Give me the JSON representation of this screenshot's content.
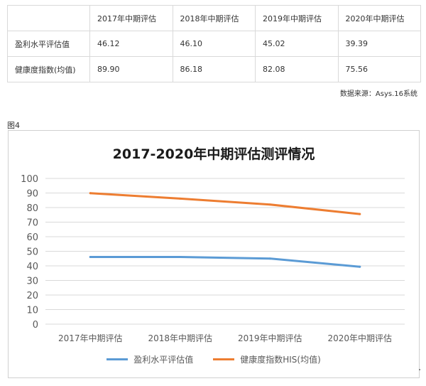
{
  "table": {
    "headers": [
      "",
      "2017年中期评估",
      "2018年中期评估",
      "2019年中期评估",
      "2020年中期评估"
    ],
    "rows": [
      {
        "label": "盈利水平评估值",
        "values": [
          "46.12",
          "46.10",
          "45.02",
          "39.39"
        ]
      },
      {
        "label": "健康度指数(均值)",
        "values": [
          "89.90",
          "86.18",
          "82.08",
          "75.56"
        ]
      }
    ]
  },
  "source_note": "数据来源：Asys.16系统",
  "figure_label": "图4",
  "colors": {
    "series_blue": "#5b9bd5",
    "series_orange": "#ed7d31",
    "grid": "#d9d9d9",
    "axis_text": "#595959"
  },
  "chart_data": {
    "type": "line",
    "title": "2017-2020年中期评估测评情况",
    "categories": [
      "2017年中期评估",
      "2018年中期评估",
      "2019年中期评估",
      "2020年中期评估"
    ],
    "y_ticks": [
      "0",
      "10",
      "20",
      "30",
      "40",
      "50",
      "60",
      "70",
      "80",
      "90",
      "100"
    ],
    "ylim": [
      0,
      100
    ],
    "grid": true,
    "legend_position": "bottom",
    "xlabel": "",
    "ylabel": "",
    "series": [
      {
        "name": "盈利水平评估值",
        "color": "#5b9bd5",
        "values": [
          46.12,
          46.1,
          45.02,
          39.39
        ]
      },
      {
        "name": "健康度指数HIS(均值)",
        "color": "#ed7d31",
        "values": [
          89.9,
          86.18,
          82.08,
          75.56
        ]
      }
    ]
  }
}
